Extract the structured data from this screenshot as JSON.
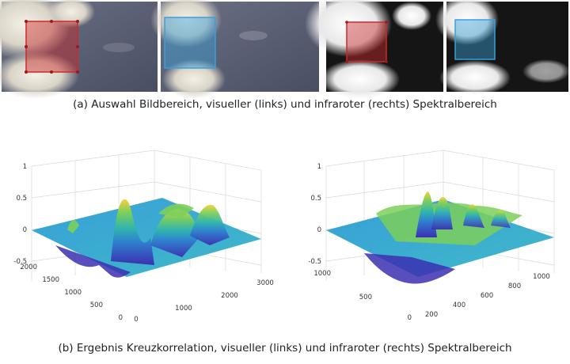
{
  "figure": {
    "caption_a": "(a) Auswahl Bildbereich, visueller (links) und infraroter (rechts) Spektralbereich",
    "caption_b": "(b) Ergebnis Kreuzkorrelation, visueller (links) und infraroter (rechts) Spektralbereich",
    "colors": {
      "selection_red": "#cc2a2a",
      "selection_blue": "#3aa0d8",
      "surface_low": "#3b2fb0",
      "surface_mid": "#2fb3b0",
      "surface_high": "#f5d23a"
    }
  },
  "chart_data": [
    {
      "type": "surface",
      "zlim": [
        -0.5,
        1
      ],
      "z_ticks": [
        "1",
        "0.5",
        "0",
        "-0.5"
      ],
      "x_ticks": [
        "0",
        "1000",
        "2000",
        "3000"
      ],
      "y_ticks": [
        "0",
        "500",
        "1000",
        "1500",
        "2000"
      ],
      "z_peak": 0.55,
      "z_min": -0.55,
      "grid": true
    },
    {
      "type": "surface",
      "zlim": [
        -0.5,
        1
      ],
      "z_ticks": [
        "1",
        "0.5",
        "0",
        "-0.5"
      ],
      "x_ticks": [
        "200",
        "400",
        "600",
        "800",
        "1000"
      ],
      "y_ticks": [
        "0",
        "500",
        "1000"
      ],
      "z_peak": 0.55,
      "z_min": -0.55,
      "grid": true
    }
  ]
}
